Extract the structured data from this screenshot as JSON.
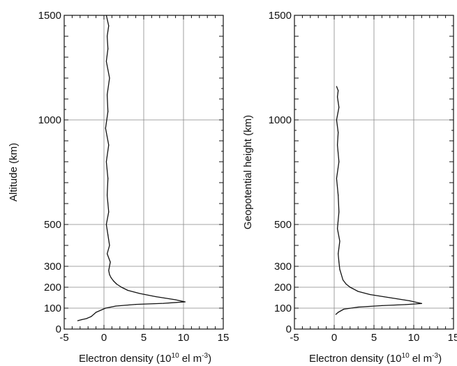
{
  "chart_data": [
    {
      "type": "line",
      "title": "",
      "xlabel": "Electron density (10",
      "xlabel_exp": "10",
      "xlabel_mid": " el m",
      "xlabel_exp2": "-3",
      "xlabel_end": ")",
      "ylabel": "Altitude (km)",
      "xlim": [
        -5,
        15
      ],
      "ylim": [
        0,
        1500
      ],
      "xticks": [
        "-5",
        "0",
        "5",
        "10",
        "15"
      ],
      "yticks": [
        "0",
        "100",
        "200",
        "300",
        "500",
        "1000",
        "1500"
      ],
      "grid": true,
      "series": [
        {
          "x": [
            -3.3,
            -2.8,
            -2.2,
            -1.6,
            -1.0,
            0.2,
            1.5,
            4.0,
            7.5,
            10.2,
            9.0,
            6.5,
            4.5,
            3.0,
            2.2,
            1.6,
            1.2,
            0.9,
            0.7,
            0.6,
            0.8,
            0.4,
            0.7,
            0.5,
            0.3,
            0.6,
            0.4,
            0.5,
            0.3,
            0.6,
            0.2,
            0.5,
            0.4,
            0.7,
            0.3,
            0.5,
            0.4,
            0.6,
            0.3
          ],
          "y": [
            40,
            45,
            50,
            60,
            80,
            100,
            110,
            118,
            123,
            130,
            140,
            155,
            170,
            185,
            200,
            215,
            230,
            245,
            260,
            280,
            320,
            360,
            400,
            450,
            500,
            560,
            640,
            720,
            800,
            880,
            960,
            1040,
            1120,
            1200,
            1280,
            1340,
            1400,
            1450,
            1500
          ]
        }
      ]
    },
    {
      "type": "line",
      "title": "",
      "xlabel": "Electron density (10",
      "xlabel_exp": "10",
      "xlabel_mid": " el m",
      "xlabel_exp2": "-3",
      "xlabel_end": ")",
      "ylabel": "Geopotential height (km)",
      "xlim": [
        -5,
        15
      ],
      "ylim": [
        0,
        1500
      ],
      "xticks": [
        "-5",
        "0",
        "5",
        "10",
        "15"
      ],
      "yticks": [
        "0",
        "100",
        "200",
        "300",
        "500",
        "1000",
        "1500"
      ],
      "grid": true,
      "series": [
        {
          "x": [
            0.2,
            0.5,
            1.2,
            3.0,
            6.0,
            9.0,
            11.0,
            9.5,
            7.0,
            4.5,
            3.0,
            2.0,
            1.5,
            1.1,
            0.9,
            0.7,
            0.6,
            0.5,
            0.7,
            0.4,
            0.6,
            0.5,
            0.3,
            0.6,
            0.4,
            0.5,
            0.3,
            0.6,
            0.4,
            0.5,
            0.3
          ],
          "y": [
            70,
            80,
            95,
            105,
            112,
            117,
            122,
            135,
            150,
            165,
            180,
            200,
            215,
            235,
            260,
            285,
            320,
            360,
            420,
            480,
            560,
            640,
            720,
            800,
            880,
            940,
            1000,
            1060,
            1110,
            1140,
            1160
          ]
        }
      ]
    }
  ]
}
